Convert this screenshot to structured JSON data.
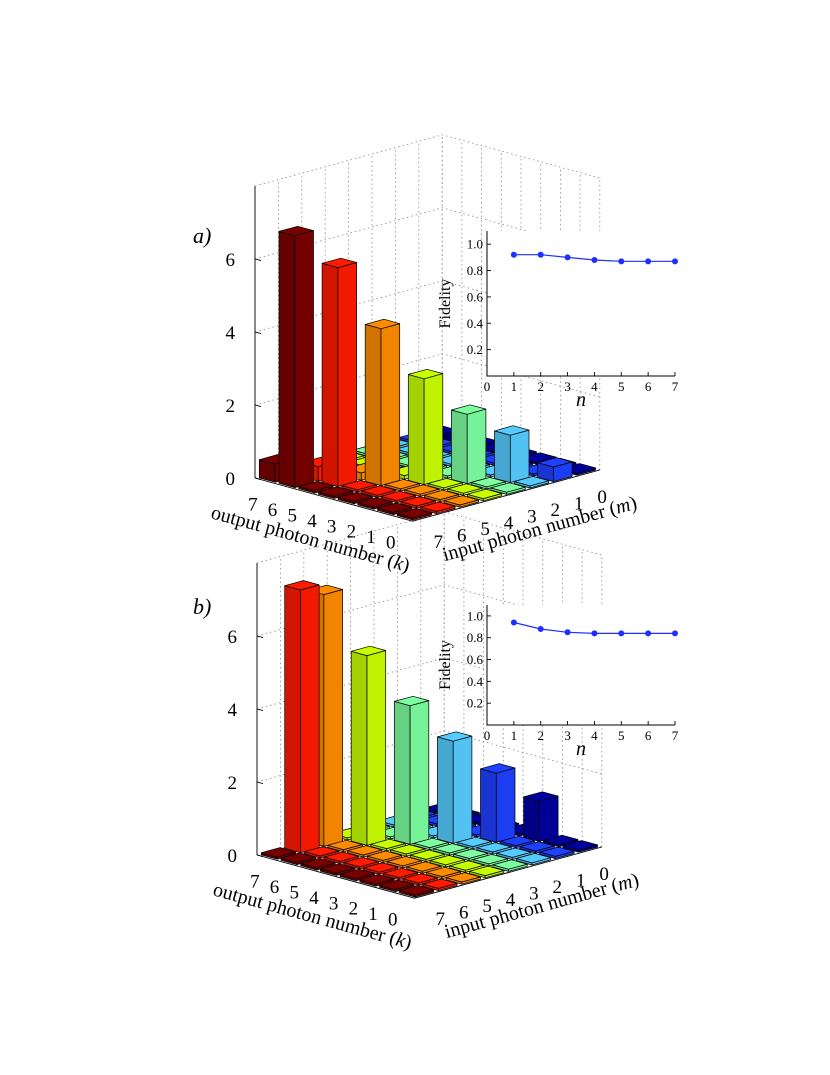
{
  "chart_data": [
    {
      "type": "bar3d",
      "panel_label": "a)",
      "zlim": [
        0,
        8
      ],
      "z_ticks": [
        "0",
        "2",
        "4",
        "6"
      ],
      "z_tick_values": [
        0,
        2,
        4,
        6
      ],
      "k_ticks": [
        "7",
        "6",
        "5",
        "4",
        "3",
        "2",
        "1",
        "0"
      ],
      "m_ticks": [
        "7",
        "6",
        "5",
        "4",
        "3",
        "2",
        "1",
        "0"
      ],
      "xlabel": "output photon number (",
      "xlabel_var": "k",
      "xlabel_end": ")",
      "ylabel": "input photon number (",
      "ylabel_var": "m",
      "ylabel_end": ")",
      "bars": [
        {
          "m": 7,
          "k": 7,
          "value": 0.5
        },
        {
          "m": 7,
          "k": 6,
          "value": 6.9
        },
        {
          "m": 6,
          "k": 6,
          "value": 0.4
        },
        {
          "m": 6,
          "k": 5,
          "value": 6.0
        },
        {
          "m": 5,
          "k": 4,
          "value": 4.3
        },
        {
          "m": 4,
          "k": 3,
          "value": 2.9
        },
        {
          "m": 3,
          "k": 2,
          "value": 1.9
        },
        {
          "m": 2,
          "k": 1,
          "value": 1.3
        },
        {
          "m": 1,
          "k": 0,
          "value": 0.4
        },
        {
          "m": 5,
          "k": 5,
          "value": 0.2
        },
        {
          "m": 4,
          "k": 4,
          "value": 0.1
        }
      ],
      "inset": {
        "x": [
          1,
          2,
          3,
          4,
          5,
          6,
          7
        ],
        "y": [
          0.92,
          0.92,
          0.9,
          0.88,
          0.87,
          0.87,
          0.87
        ],
        "xlim": [
          0,
          7
        ],
        "ylim": [
          0,
          1.1
        ],
        "x_ticks": [
          "0",
          "1",
          "2",
          "3",
          "4",
          "5",
          "6",
          "7"
        ],
        "y_ticks": [
          "0.2",
          "0.4",
          "0.6",
          "0.8",
          "1.0"
        ],
        "ylabel": "Fidelity",
        "xlabel": "n"
      }
    },
    {
      "type": "bar3d",
      "panel_label": "b)",
      "zlim": [
        0,
        8
      ],
      "z_ticks": [
        "0",
        "2",
        "4",
        "6"
      ],
      "z_tick_values": [
        0,
        2,
        4,
        6
      ],
      "k_ticks": [
        "7",
        "6",
        "5",
        "4",
        "3",
        "2",
        "1",
        "0"
      ],
      "m_ticks": [
        "7",
        "6",
        "5",
        "4",
        "3",
        "2",
        "1",
        "0"
      ],
      "xlabel": "output photon number (",
      "xlabel_var": "k",
      "xlabel_end": ")",
      "ylabel": "input photon number (",
      "ylabel_var": "m",
      "ylabel_end": ")",
      "bars": [
        {
          "m": 6,
          "k": 7,
          "value": 7.2
        },
        {
          "m": 5,
          "k": 7,
          "value": 6.9
        },
        {
          "m": 4,
          "k": 6,
          "value": 5.2
        },
        {
          "m": 3,
          "k": 5,
          "value": 3.8
        },
        {
          "m": 2,
          "k": 4,
          "value": 2.8
        },
        {
          "m": 1,
          "k": 3,
          "value": 1.9
        },
        {
          "m": 0,
          "k": 2,
          "value": 1.1
        }
      ],
      "inset": {
        "x": [
          1,
          2,
          3,
          4,
          5,
          6,
          7
        ],
        "y": [
          0.94,
          0.88,
          0.85,
          0.84,
          0.84,
          0.84,
          0.84
        ],
        "xlim": [
          0,
          7
        ],
        "ylim": [
          0,
          1.1
        ],
        "x_ticks": [
          "0",
          "1",
          "2",
          "3",
          "4",
          "5",
          "6",
          "7"
        ],
        "y_ticks": [
          "0.2",
          "0.4",
          "0.6",
          "0.8",
          "1.0"
        ],
        "ylabel": "Fidelity",
        "xlabel": "n"
      }
    }
  ],
  "colors": {
    "m7": "#7a0000",
    "m6": "#ff1a00",
    "m5": "#ff8c00",
    "m4": "#c8ff00",
    "m3": "#7dffa0",
    "m2": "#55ccff",
    "m1": "#1e40ff",
    "m0": "#0000a0",
    "inset_line": "#1f2fff",
    "grid": "#888888"
  }
}
